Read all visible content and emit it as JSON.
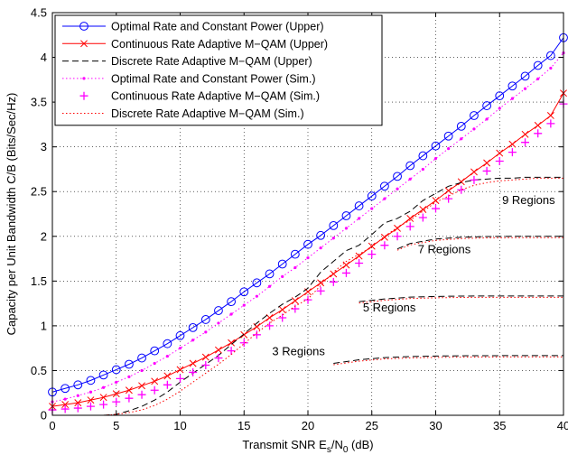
{
  "chart_data": {
    "type": "line",
    "title": "",
    "xlabel": "Transmit SNR E",
    "xlabel_sub1": "s",
    "xlabel_mid": "/N",
    "xlabel_sub2": "0",
    "xlabel_tail": " (dB)",
    "ylabel": "Capacity per Unit Bandwidth C/B (Bits/Sec/Hz)",
    "xlim": [
      0,
      40
    ],
    "ylim": [
      0,
      4.5
    ],
    "xticks": [
      0,
      5,
      10,
      15,
      20,
      25,
      30,
      35,
      40
    ],
    "yticks": [
      0,
      0.5,
      1,
      1.5,
      2,
      2.5,
      3,
      3.5,
      4,
      4.5
    ],
    "grid": true,
    "legend_position": "top-left",
    "x": [
      0,
      1,
      2,
      3,
      4,
      5,
      6,
      7,
      8,
      9,
      10,
      11,
      12,
      13,
      14,
      15,
      16,
      17,
      18,
      19,
      20,
      21,
      22,
      23,
      24,
      25,
      26,
      27,
      28,
      29,
      30,
      31,
      32,
      33,
      34,
      35,
      36,
      37,
      38,
      39,
      40
    ],
    "series": [
      {
        "name": "Optimal Rate and Constant Power (Upper)",
        "color": "#0000ff",
        "style": "solid",
        "marker": "circle",
        "values": [
          0.26,
          0.3,
          0.34,
          0.39,
          0.45,
          0.51,
          0.57,
          0.64,
          0.72,
          0.8,
          0.89,
          0.98,
          1.07,
          1.17,
          1.27,
          1.38,
          1.48,
          1.58,
          1.69,
          1.8,
          1.91,
          2.01,
          2.12,
          2.23,
          2.34,
          2.45,
          2.56,
          2.67,
          2.79,
          2.9,
          3.01,
          3.12,
          3.23,
          3.35,
          3.46,
          3.57,
          3.68,
          3.79,
          3.91,
          4.02,
          4.22
        ]
      },
      {
        "name": "Continuous Rate Adaptive M−QAM (Upper)",
        "color": "#ff0000",
        "style": "solid",
        "marker": "x",
        "values": [
          0.1,
          0.12,
          0.14,
          0.17,
          0.2,
          0.24,
          0.28,
          0.33,
          0.38,
          0.44,
          0.51,
          0.58,
          0.65,
          0.73,
          0.81,
          0.9,
          0.99,
          1.09,
          1.18,
          1.28,
          1.38,
          1.48,
          1.58,
          1.68,
          1.78,
          1.89,
          1.99,
          2.09,
          2.2,
          2.3,
          2.4,
          2.51,
          2.61,
          2.72,
          2.82,
          2.93,
          3.03,
          3.14,
          3.24,
          3.35,
          3.6
        ]
      },
      {
        "name": "Discrete Rate Adaptive M−QAM (Upper)",
        "color": "#000000",
        "style": "dashed",
        "marker": "none",
        "values": [
          null,
          null,
          null,
          null,
          0.0,
          0.01,
          0.05,
          0.1,
          0.17,
          0.26,
          0.37,
          0.47,
          0.57,
          0.67,
          0.79,
          0.91,
          1.03,
          1.14,
          1.24,
          1.32,
          1.42,
          1.6,
          1.72,
          1.84,
          1.9,
          2.02,
          2.15,
          2.2,
          2.28,
          2.4,
          2.48,
          2.56,
          2.6,
          2.63,
          2.64,
          2.65,
          2.65,
          2.66,
          2.66,
          2.66,
          2.66
        ]
      },
      {
        "name": "Optimal Rate and Constant Power (Sim.)",
        "color": "#ff00ff",
        "style": "dotted",
        "marker": "dot",
        "values": [
          0.15,
          0.18,
          0.22,
          0.26,
          0.31,
          0.37,
          0.43,
          0.5,
          0.58,
          0.66,
          0.75,
          0.84,
          0.93,
          1.03,
          1.13,
          1.23,
          1.33,
          1.44,
          1.55,
          1.65,
          1.76,
          1.87,
          1.98,
          2.09,
          2.2,
          2.31,
          2.42,
          2.53,
          2.64,
          2.75,
          2.87,
          2.98,
          3.09,
          3.2,
          3.31,
          3.43,
          3.54,
          3.65,
          3.76,
          3.88,
          4.05
        ]
      },
      {
        "name": "Continuous Rate Adaptive M−QAM (Sim.)",
        "color": "#ff00ff",
        "style": "none",
        "marker": "plus",
        "values": [
          0.06,
          0.07,
          0.08,
          0.1,
          0.12,
          0.15,
          0.19,
          0.23,
          0.28,
          0.34,
          0.41,
          0.48,
          0.56,
          0.64,
          0.72,
          0.81,
          0.9,
          1.0,
          1.09,
          1.19,
          1.29,
          1.39,
          1.49,
          1.59,
          1.7,
          1.8,
          1.9,
          2.0,
          2.11,
          2.21,
          2.31,
          2.42,
          2.52,
          2.63,
          2.73,
          2.84,
          2.94,
          3.05,
          3.15,
          3.26,
          3.48
        ]
      },
      {
        "name": "Discrete Rate Adaptive M−QAM (Sim.)",
        "color": "#ff0000",
        "style": "dotted",
        "marker": "none",
        "values": [
          null,
          null,
          null,
          null,
          0.0,
          0.01,
          0.03,
          0.06,
          0.11,
          0.18,
          0.27,
          0.37,
          0.47,
          0.57,
          0.68,
          0.8,
          0.92,
          1.03,
          1.12,
          1.22,
          1.3,
          1.45,
          1.6,
          1.72,
          1.8,
          1.88,
          2.0,
          2.1,
          2.18,
          2.28,
          2.38,
          2.45,
          2.52,
          2.57,
          2.6,
          2.62,
          2.63,
          2.64,
          2.65,
          2.65,
          2.65
        ]
      }
    ],
    "plateaus": [
      {
        "label": "3 Regions",
        "level": 0.667,
        "x": [
          22,
          24,
          26,
          28,
          30,
          32,
          34,
          36,
          38,
          40
        ],
        "values": [
          0.58,
          0.62,
          0.645,
          0.656,
          0.662,
          0.665,
          0.666,
          0.667,
          0.667,
          0.667
        ]
      },
      {
        "label": "5 Regions",
        "level": 1.333,
        "x": [
          24,
          26,
          28,
          30,
          32,
          34,
          36,
          38,
          40
        ],
        "values": [
          1.27,
          1.3,
          1.32,
          1.328,
          1.332,
          1.333,
          1.333,
          1.333,
          1.333
        ]
      },
      {
        "label": "7 Regions",
        "level": 2.0,
        "x": [
          27,
          28,
          30,
          32,
          34,
          36,
          38,
          40
        ],
        "values": [
          1.86,
          1.92,
          1.97,
          1.99,
          1.998,
          2.0,
          2.0,
          2.0
        ]
      }
    ],
    "annotations": [
      {
        "text": "9 Regions",
        "x": 35.2,
        "y": 2.4
      },
      {
        "text": "7 Regions",
        "x": 28.6,
        "y": 1.85
      },
      {
        "text": "5 Regions",
        "x": 24.3,
        "y": 1.2
      },
      {
        "text": "3 Regions",
        "x": 17.2,
        "y": 0.71
      }
    ]
  }
}
